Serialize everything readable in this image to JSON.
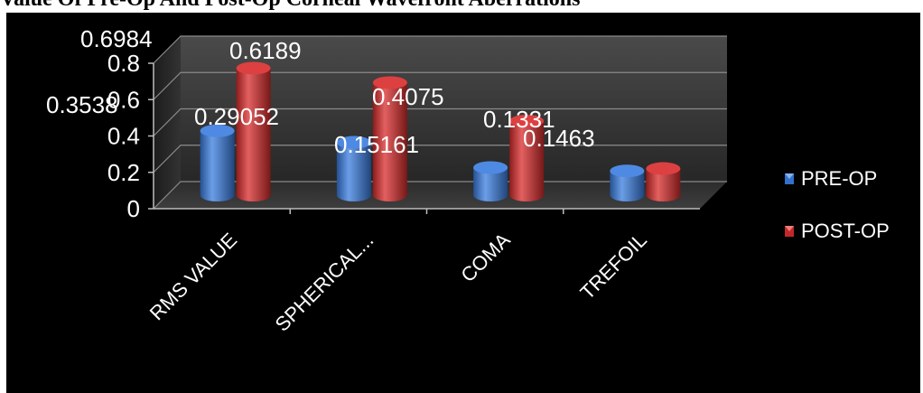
{
  "title": "Value Of Pre-Op And Post-Op Corneal Wavefront Aberrations",
  "chart_data": {
    "type": "bar",
    "style": "3d-cylinder",
    "categories": [
      "RMS VALUE",
      "SPHERICAL...",
      "COMA",
      "TREFOIL"
    ],
    "series": [
      {
        "name": "PRE-OP",
        "values": [
          0.3538,
          0.29052,
          0.15161,
          0.1331
        ],
        "labels": [
          "0.3538",
          "0.29052",
          "0.15161",
          "0.1331"
        ],
        "color": "#3a7de0"
      },
      {
        "name": "POST-OP",
        "values": [
          0.6984,
          0.6189,
          0.4075,
          0.1463
        ],
        "labels": [
          "0.6984",
          "0.6189",
          "0.4075",
          "0.1463"
        ],
        "color": "#d92b2b"
      }
    ],
    "ylim": [
      0,
      0.8
    ],
    "yticks": [
      "0",
      "0.2",
      "0.4",
      "0.6",
      "0.8"
    ],
    "grid": true,
    "legend": "right",
    "background": "#000000"
  }
}
